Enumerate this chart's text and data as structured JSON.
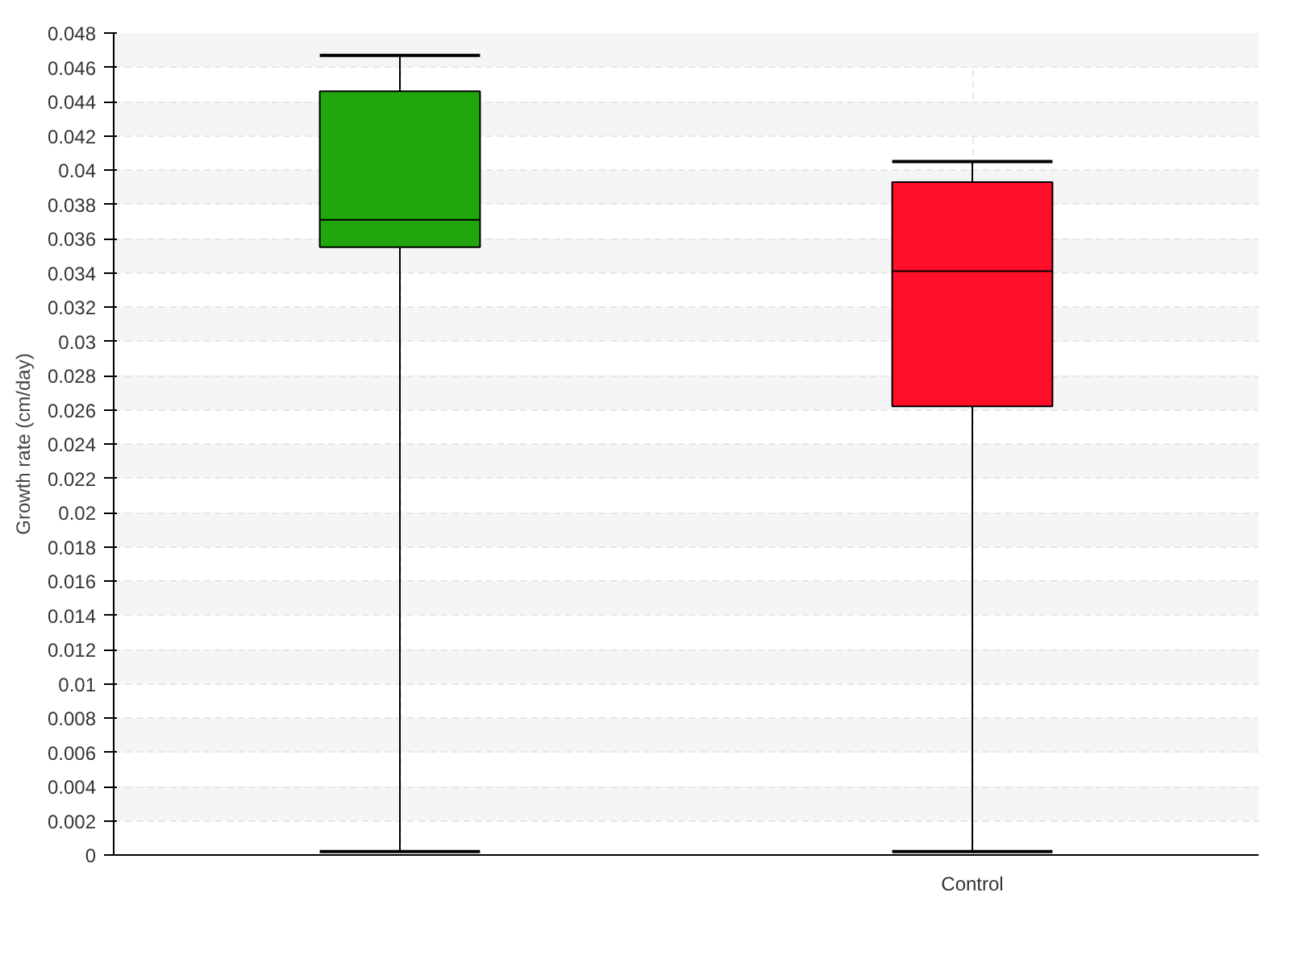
{
  "chart_data": {
    "type": "box",
    "ylabel": "Growth rate (cm/day)",
    "categories": [
      null,
      "Control"
    ],
    "colors": [
      "#22a60e",
      "#ff0e2a"
    ],
    "boxes": [
      {
        "low": 0.0002,
        "q1": 0.0355,
        "median": 0.0371,
        "q3": 0.0446,
        "high": 0.0467
      },
      {
        "low": 0.0002,
        "q1": 0.0262,
        "median": 0.0341,
        "q3": 0.0393,
        "high": 0.0405
      }
    ],
    "ylim": [
      0,
      0.048
    ],
    "yticks": [
      0,
      0.002,
      0.004,
      0.006,
      0.008,
      0.01,
      0.012,
      0.014,
      0.016,
      0.018,
      0.02,
      0.022,
      0.024,
      0.026,
      0.028,
      0.03,
      0.032,
      0.034,
      0.036,
      0.038,
      0.04,
      0.042,
      0.044,
      0.046,
      0.048
    ],
    "grid": true
  }
}
